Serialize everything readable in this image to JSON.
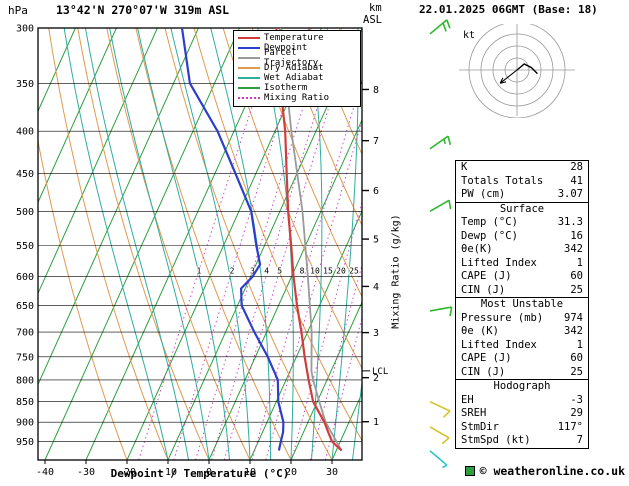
{
  "header": {
    "pressure_unit": "hPa",
    "station": "13°42'N 270°07'W 319m ASL",
    "altitude_unit_km": "km",
    "altitude_unit_asl": "ASL",
    "datetime": "22.01.2025 06GMT (Base: 18)"
  },
  "legend": {
    "items": [
      {
        "label": "Temperature",
        "color": "#d23c3c",
        "dash": "solid"
      },
      {
        "label": "Dewpoint",
        "color": "#2e3ecc",
        "dash": "solid"
      },
      {
        "label": "Parcel Trajectory",
        "color": "#9a9a9a",
        "dash": "solid"
      },
      {
        "label": "Dry Adiabat",
        "color": "#de9a50",
        "dash": "solid"
      },
      {
        "label": "Wet Adiabat",
        "color": "#2fae9e",
        "dash": "solid"
      },
      {
        "label": "Isotherm",
        "color": "#2e9e3e",
        "dash": "solid"
      },
      {
        "label": "Mixing Ratio",
        "color": "#c83cc8",
        "dash": "dotted"
      }
    ]
  },
  "axes": {
    "x_axis_label": "Dewpoint / Temperature (°C)",
    "mixing_ratio_axis_label": "Mixing Ratio (g/kg)"
  },
  "chart_data": {
    "type": "line",
    "title": "Skew-T log-p sounding",
    "x_axis": {
      "label": "Dewpoint / Temperature (°C)",
      "unit": "°C",
      "ticks": [
        -40,
        -30,
        -20,
        -10,
        0,
        10,
        20,
        30
      ]
    },
    "y_axis": {
      "label": "hPa",
      "scale": "log",
      "range": [
        300,
        1000
      ],
      "ticks": [
        300,
        350,
        400,
        450,
        500,
        550,
        600,
        650,
        700,
        750,
        800,
        850,
        900,
        950
      ]
    },
    "secondary_y_axis": {
      "label": "km ASL",
      "ticks": [
        1,
        2,
        3,
        4,
        5,
        6,
        7,
        8
      ]
    },
    "mixing_ratio_lines": [
      1,
      2,
      3,
      4,
      5,
      8,
      10,
      15,
      20,
      25
    ],
    "lcl_pressure": 780,
    "lcl_label": "LCL",
    "colors": {
      "isotherm": "#2e9e3e",
      "dry_adiabat": "#de9a50",
      "wet_adiabat": "#2fae9e",
      "mixing_ratio": "#c83cc8"
    },
    "series": [
      {
        "name": "Parcel Trajectory",
        "color": "#9a9a9a",
        "width": 1.8,
        "pressure": [
          974,
          900,
          850,
          800,
          780,
          700,
          600,
          500,
          400,
          300
        ],
        "values": [
          31.3,
          24.3,
          20.5,
          16.6,
          15.2,
          11,
          4,
          -4.5,
          -16,
          -30
        ]
      },
      {
        "name": "Dewpoint",
        "color": "#2e3ecc",
        "width": 2.2,
        "pressure": [
          974,
          950,
          925,
          900,
          850,
          800,
          750,
          700,
          650,
          620,
          600,
          580,
          550,
          500,
          450,
          400,
          350,
          300
        ],
        "values": [
          16,
          15.5,
          15,
          14,
          10.5,
          8,
          3,
          -3,
          -9,
          -11,
          -9.5,
          -9,
          -12,
          -17,
          -25,
          -34,
          -46,
          -54
        ]
      },
      {
        "name": "Temperature",
        "color": "#d23c3c",
        "width": 2.2,
        "pressure": [
          974,
          950,
          925,
          900,
          850,
          800,
          750,
          700,
          650,
          600,
          550,
          500,
          450,
          400,
          350,
          300
        ],
        "values": [
          31.3,
          28,
          26,
          24,
          19,
          15.5,
          12,
          8.5,
          4.5,
          0.5,
          -3.5,
          -8,
          -12.5,
          -17.5,
          -24,
          -31
        ]
      }
    ],
    "wind_barbs": [
      {
        "pressure": 305,
        "speed_kt": 20,
        "direction_deg": 50,
        "color": "#2eb82e"
      },
      {
        "pressure": 420,
        "speed_kt": 15,
        "direction_deg": 55,
        "color": "#2eb82e"
      },
      {
        "pressure": 500,
        "speed_kt": 10,
        "direction_deg": 60,
        "color": "#2eb82e"
      },
      {
        "pressure": 660,
        "speed_kt": 10,
        "direction_deg": 80,
        "color": "#2eb82e"
      },
      {
        "pressure": 850,
        "speed_kt": 10,
        "direction_deg": 115,
        "color": "#d4c428"
      },
      {
        "pressure": 912,
        "speed_kt": 10,
        "direction_deg": 120,
        "color": "#d4c428"
      },
      {
        "pressure": 975,
        "speed_kt": 5,
        "direction_deg": 130,
        "color": "#28c8c8"
      }
    ]
  },
  "hodograph": {
    "unit_label": "kt",
    "rings_kt": [
      10,
      20,
      30,
      40
    ],
    "trace_kt": [
      [
        0,
        0
      ],
      [
        6,
        -5
      ],
      [
        12,
        -2
      ],
      [
        17,
        3
      ]
    ],
    "storm_vector_kt": [
      -14,
      11
    ]
  },
  "panel": {
    "general": [
      {
        "label": "K",
        "value": "28"
      },
      {
        "label": "Totals Totals",
        "value": "41"
      },
      {
        "label": "PW (cm)",
        "value": "3.07"
      }
    ],
    "surface": {
      "title": "Surface",
      "rows": [
        {
          "label": "Temp (°C)",
          "value": "31.3"
        },
        {
          "label": "Dewp (°C)",
          "value": "16"
        },
        {
          "label": "θe(K)",
          "value": "342"
        },
        {
          "label": "Lifted Index",
          "value": "1"
        },
        {
          "label": "CAPE (J)",
          "value": "60"
        },
        {
          "label": "CIN (J)",
          "value": "25"
        }
      ]
    },
    "most_unstable": {
      "title": "Most Unstable",
      "rows": [
        {
          "label": "Pressure (mb)",
          "value": "974"
        },
        {
          "label": "θe (K)",
          "value": "342"
        },
        {
          "label": "Lifted Index",
          "value": "1"
        },
        {
          "label": "CAPE (J)",
          "value": "60"
        },
        {
          "label": "CIN (J)",
          "value": "25"
        }
      ]
    },
    "hodograph_section": {
      "title": "Hodograph",
      "rows": [
        {
          "label": "EH",
          "value": "-3"
        },
        {
          "label": "SREH",
          "value": "29"
        },
        {
          "label": "StmDir",
          "value": "117°"
        },
        {
          "label": "StmSpd (kt)",
          "value": "7"
        }
      ]
    }
  },
  "watermark": {
    "text": "© weatheronline.co.uk"
  }
}
